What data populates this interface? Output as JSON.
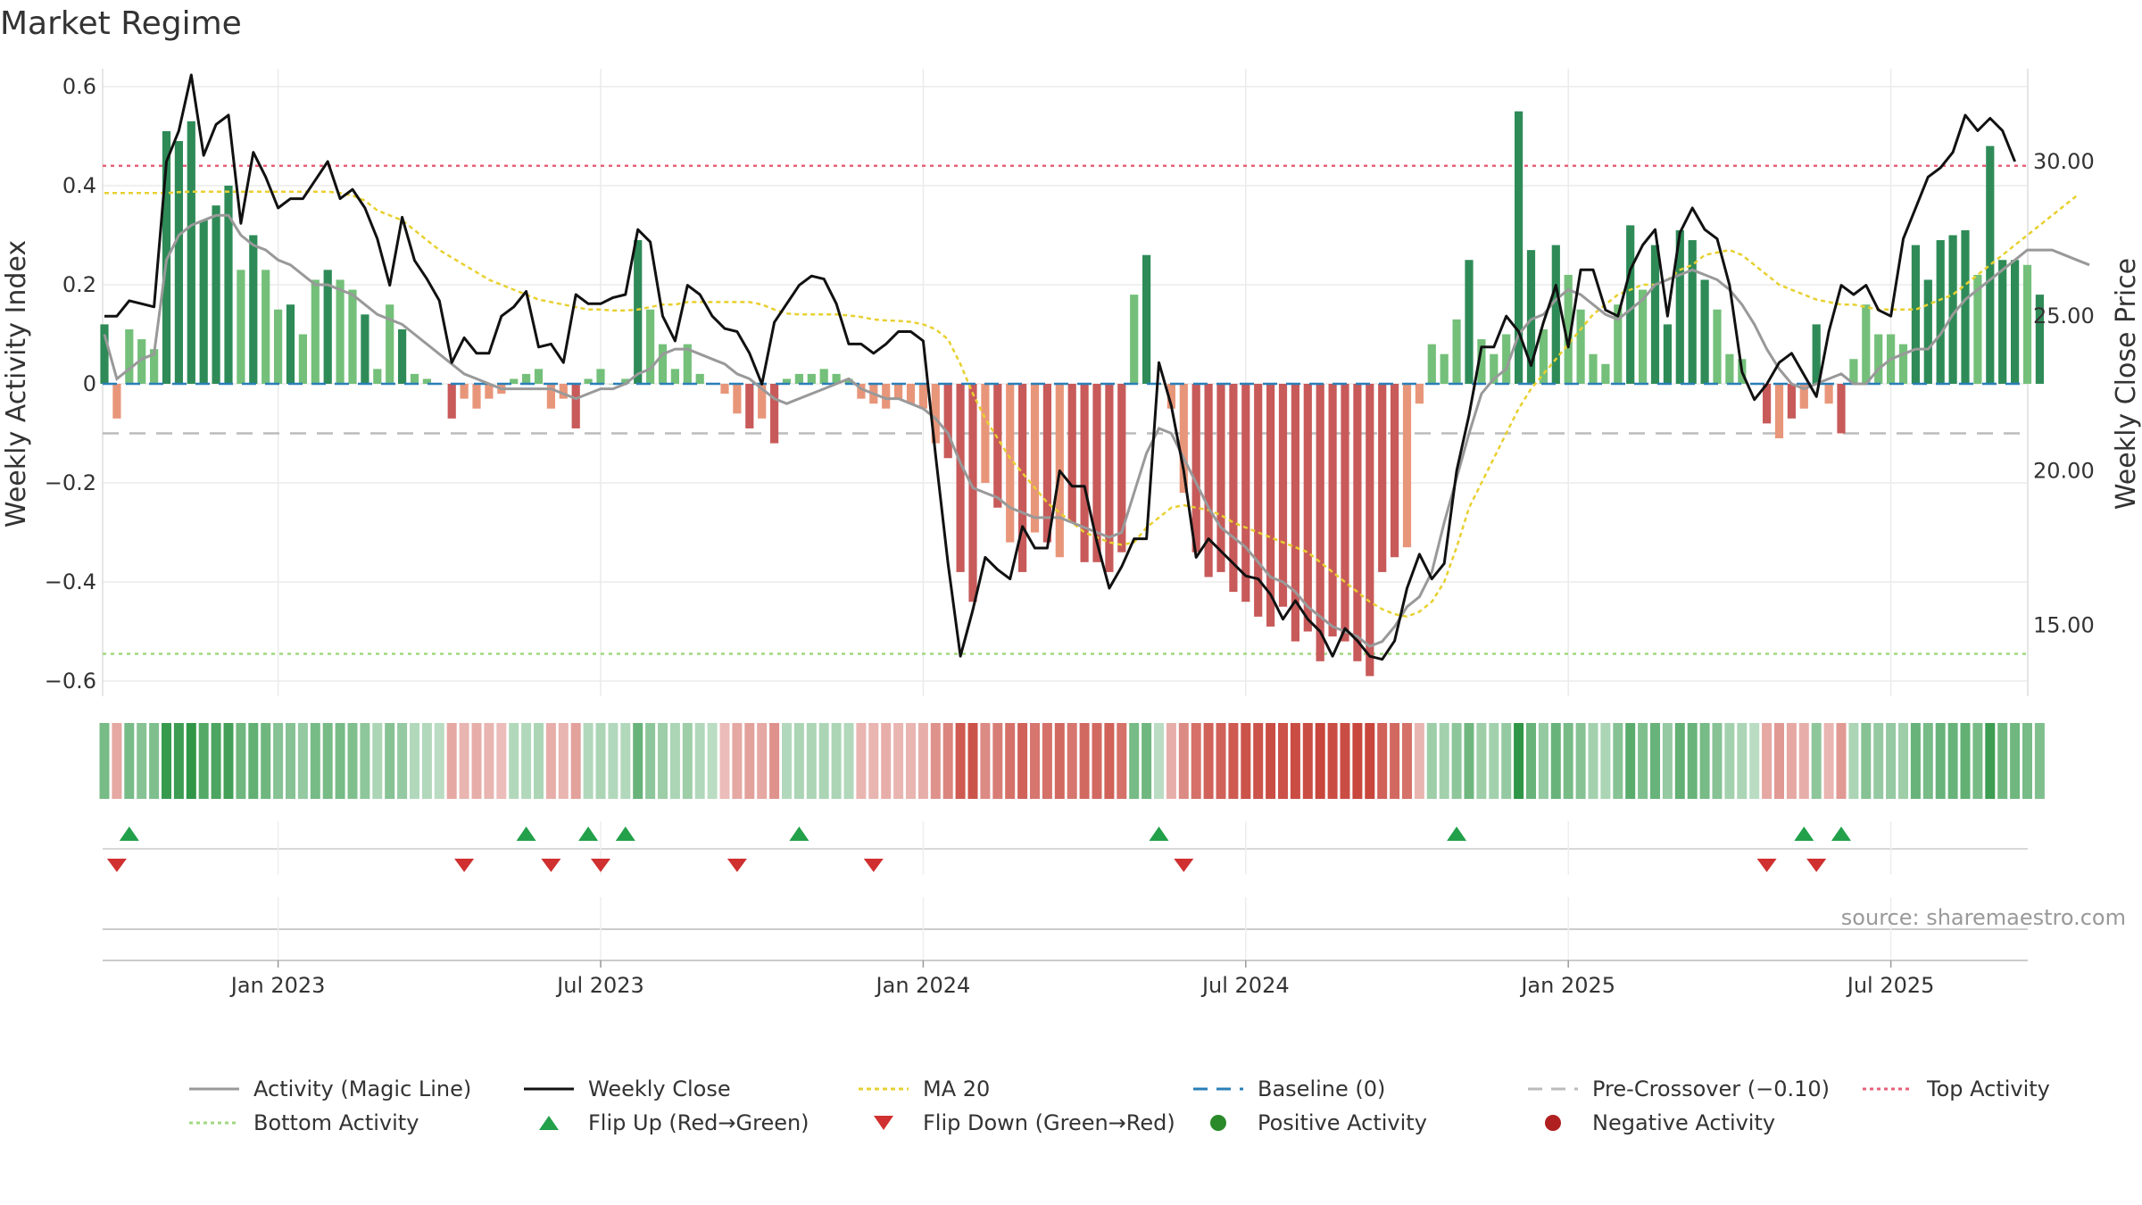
{
  "title": "Market Regime",
  "source": "source: sharemaestro.com",
  "colors": {
    "green_dark": "#2e8b57",
    "green_light": "#74c07a",
    "red_dark": "#c85a5a",
    "red_light": "#e8967a",
    "magic_line": "#999999",
    "close": "#111111",
    "ma20": "#e8d030",
    "baseline": "#2a7fb8",
    "pre": "#bbbbbb",
    "top": "#e8607a",
    "bottom": "#a0d880",
    "flip_up": "#22a04a",
    "flip_down": "#d03030"
  },
  "chart_data": {
    "type": "bar",
    "title": "Market Regime",
    "ylabel": "Weekly Activity Index",
    "y2label": "Weekly Close Price",
    "ylim": [
      -0.63,
      0.63
    ],
    "y2lim": [
      12.8,
      33.0
    ],
    "yticks": [
      "0.6",
      "0.4",
      "0.2",
      "0",
      "−0.2",
      "−0.4",
      "−0.6"
    ],
    "y2ticks": [
      "30.00",
      "25.00",
      "20.00",
      "15.00"
    ],
    "xticks": [
      "Jan 2023",
      "Jul 2023",
      "Jan 2024",
      "Jul 2024",
      "Jan 2025",
      "Jul 2025"
    ],
    "xtick_week_index": [
      14,
      40,
      66,
      92,
      118,
      144
    ],
    "reference_lines": {
      "baseline": 0,
      "pre_crossover": -0.1,
      "top_activity": 0.44,
      "bottom_activity": -0.545
    },
    "activity": [
      0.12,
      -0.07,
      0.11,
      0.09,
      0.07,
      0.51,
      0.49,
      0.53,
      0.33,
      0.36,
      0.4,
      0.23,
      0.3,
      0.23,
      0.15,
      0.16,
      0.1,
      0.21,
      0.23,
      0.21,
      0.19,
      0.14,
      0.03,
      0.16,
      0.11,
      0.02,
      0.01,
      0,
      -0.07,
      -0.03,
      -0.05,
      -0.03,
      -0.02,
      0.01,
      0.02,
      0.03,
      -0.05,
      -0.03,
      -0.09,
      0.01,
      0.03,
      0,
      0.01,
      0.29,
      0.15,
      0.08,
      0.03,
      0.08,
      0.02,
      0,
      -0.02,
      -0.06,
      -0.09,
      -0.07,
      -0.12,
      0.01,
      0.02,
      0.02,
      0.03,
      0.02,
      0.01,
      -0.03,
      -0.04,
      -0.05,
      -0.03,
      -0.04,
      -0.05,
      -0.12,
      -0.15,
      -0.38,
      -0.44,
      -0.2,
      -0.25,
      -0.32,
      -0.38,
      -0.3,
      -0.32,
      -0.35,
      -0.28,
      -0.36,
      -0.36,
      -0.38,
      -0.34,
      0.18,
      0.26,
      0,
      -0.05,
      -0.22,
      -0.34,
      -0.39,
      -0.38,
      -0.42,
      -0.44,
      -0.47,
      -0.49,
      -0.45,
      -0.52,
      -0.5,
      -0.56,
      -0.51,
      -0.52,
      -0.56,
      -0.59,
      -0.38,
      -0.35,
      -0.33,
      -0.04,
      0.08,
      0.06,
      0.13,
      0.25,
      0.09,
      0.06,
      0.1,
      0.55,
      0.27,
      0.11,
      0.28,
      0.22,
      0.15,
      0.06,
      0.04,
      0.16,
      0.32,
      0.19,
      0.28,
      0.12,
      0.31,
      0.29,
      0.21,
      0.15,
      0.06,
      0.05,
      0,
      -0.08,
      -0.11,
      -0.07,
      -0.05,
      0.12,
      -0.04,
      -0.1,
      0.05,
      0.16,
      0.1,
      0.1,
      0.08,
      0.28,
      0.21,
      0.29,
      0.3,
      0.31,
      0.22,
      0.48,
      0.25,
      0.25,
      0.24,
      0.18
    ],
    "close": [
      25.0,
      25.0,
      25.5,
      25.4,
      25.3,
      30.0,
      31.0,
      32.8,
      30.2,
      31.2,
      31.5,
      28.0,
      30.3,
      29.5,
      28.5,
      28.8,
      28.8,
      29.4,
      30.0,
      28.8,
      29.1,
      28.5,
      27.5,
      26.0,
      28.2,
      26.8,
      26.2,
      25.5,
      23.5,
      24.3,
      23.8,
      23.8,
      25.0,
      25.3,
      25.8,
      24.0,
      24.1,
      23.5,
      25.7,
      25.4,
      25.4,
      25.6,
      25.7,
      27.8,
      27.4,
      25.0,
      24.2,
      26.0,
      25.7,
      25.0,
      24.6,
      24.5,
      23.8,
      22.8,
      24.8,
      25.4,
      26.0,
      26.3,
      26.2,
      25.4,
      24.1,
      24.1,
      23.8,
      24.1,
      24.5,
      24.5,
      24.2,
      20.5,
      17.0,
      14.0,
      15.5,
      17.2,
      16.8,
      16.5,
      18.2,
      17.5,
      17.5,
      20.0,
      19.5,
      19.5,
      17.7,
      16.2,
      16.9,
      17.8,
      17.8,
      23.5,
      22.1,
      20.0,
      17.2,
      17.8,
      17.4,
      17.0,
      16.6,
      16.5,
      16.0,
      15.2,
      15.8,
      15.2,
      14.8,
      14.0,
      14.9,
      14.5,
      14.0,
      13.9,
      14.5,
      16.2,
      17.3,
      16.5,
      17.0,
      20.0,
      21.8,
      24.0,
      24.0,
      25.0,
      24.5,
      23.4,
      24.8,
      26.0,
      24.0,
      26.5,
      26.5,
      25.2,
      25.0,
      26.5,
      27.3,
      27.8,
      25.0,
      27.7,
      28.5,
      27.8,
      27.5,
      26.0,
      23.2,
      22.3,
      22.8,
      23.5,
      23.8,
      23.1,
      22.4,
      24.5,
      26.0,
      25.7,
      26.0,
      25.2,
      25.0,
      27.5,
      28.5,
      29.5,
      29.8,
      30.3,
      31.5,
      31.0,
      31.4,
      31.0,
      30.0
    ],
    "magic_line": [
      0.1,
      0.01,
      0.03,
      0.05,
      0.06,
      0.25,
      0.3,
      0.32,
      0.33,
      0.34,
      0.34,
      0.3,
      0.28,
      0.27,
      0.25,
      0.24,
      0.22,
      0.2,
      0.2,
      0.19,
      0.18,
      0.16,
      0.14,
      0.13,
      0.12,
      0.1,
      0.08,
      0.06,
      0.04,
      0.02,
      0.01,
      0,
      -0.01,
      -0.01,
      -0.01,
      -0.01,
      -0.01,
      -0.02,
      -0.03,
      -0.02,
      -0.01,
      -0.01,
      0,
      0.02,
      0.03,
      0.06,
      0.07,
      0.07,
      0.06,
      0.05,
      0.04,
      0.02,
      0.01,
      -0.01,
      -0.03,
      -0.04,
      -0.03,
      -0.02,
      -0.01,
      0,
      0.01,
      -0.01,
      -0.02,
      -0.03,
      -0.03,
      -0.04,
      -0.05,
      -0.07,
      -0.1,
      -0.16,
      -0.21,
      -0.22,
      -0.23,
      -0.25,
      -0.26,
      -0.27,
      -0.27,
      -0.27,
      -0.28,
      -0.29,
      -0.3,
      -0.31,
      -0.3,
      -0.22,
      -0.14,
      -0.09,
      -0.1,
      -0.15,
      -0.2,
      -0.25,
      -0.29,
      -0.31,
      -0.33,
      -0.36,
      -0.39,
      -0.4,
      -0.42,
      -0.45,
      -0.47,
      -0.49,
      -0.5,
      -0.51,
      -0.53,
      -0.52,
      -0.49,
      -0.45,
      -0.43,
      -0.38,
      -0.28,
      -0.19,
      -0.1,
      -0.02,
      0.01,
      0.03,
      0.1,
      0.13,
      0.14,
      0.17,
      0.19,
      0.18,
      0.16,
      0.14,
      0.13,
      0.15,
      0.17,
      0.2,
      0.21,
      0.22,
      0.23,
      0.22,
      0.21,
      0.19,
      0.16,
      0.12,
      0.07,
      0.03,
      0,
      -0.01,
      0,
      0.01,
      0.02,
      0,
      0,
      0.03,
      0.05,
      0.06,
      0.07,
      0.07,
      0.1,
      0.14,
      0.17,
      0.19,
      0.21,
      0.23,
      0.25,
      0.27,
      0.27,
      0.27,
      0.26,
      0.25,
      0.24
    ],
    "ma20": [
      0.385,
      0.385,
      0.385,
      0.385,
      0.385,
      0.385,
      0.387,
      0.388,
      0.388,
      0.388,
      0.388,
      0.388,
      0.388,
      0.388,
      0.388,
      0.388,
      0.388,
      0.388,
      0.388,
      0.385,
      0.38,
      0.37,
      0.35,
      0.34,
      0.33,
      0.31,
      0.29,
      0.27,
      0.255,
      0.24,
      0.225,
      0.21,
      0.2,
      0.19,
      0.18,
      0.17,
      0.165,
      0.16,
      0.155,
      0.15,
      0.15,
      0.148,
      0.148,
      0.15,
      0.155,
      0.16,
      0.16,
      0.165,
      0.165,
      0.165,
      0.165,
      0.165,
      0.165,
      0.16,
      0.15,
      0.142,
      0.14,
      0.14,
      0.14,
      0.14,
      0.138,
      0.135,
      0.13,
      0.128,
      0.127,
      0.125,
      0.12,
      0.11,
      0.09,
      0.04,
      -0.02,
      -0.07,
      -0.11,
      -0.15,
      -0.18,
      -0.21,
      -0.24,
      -0.26,
      -0.28,
      -0.3,
      -0.31,
      -0.32,
      -0.325,
      -0.32,
      -0.29,
      -0.27,
      -0.25,
      -0.245,
      -0.25,
      -0.255,
      -0.265,
      -0.28,
      -0.29,
      -0.3,
      -0.31,
      -0.32,
      -0.33,
      -0.34,
      -0.36,
      -0.38,
      -0.4,
      -0.42,
      -0.44,
      -0.455,
      -0.465,
      -0.47,
      -0.46,
      -0.44,
      -0.4,
      -0.33,
      -0.25,
      -0.2,
      -0.15,
      -0.1,
      -0.05,
      -0.01,
      0.02,
      0.05,
      0.08,
      0.11,
      0.14,
      0.16,
      0.18,
      0.19,
      0.2,
      0.2,
      0.21,
      0.23,
      0.24,
      0.26,
      0.265,
      0.27,
      0.26,
      0.24,
      0.22,
      0.2,
      0.19,
      0.18,
      0.17,
      0.165,
      0.16,
      0.16,
      0.155,
      0.15,
      0.15,
      0.15,
      0.15,
      0.16,
      0.17,
      0.18,
      0.2,
      0.22,
      0.24,
      0.26,
      0.28,
      0.3,
      0.32,
      0.34,
      0.36,
      0.38
    ],
    "regime_strength": [
      0.5,
      0.3,
      0.5,
      0.4,
      0.45,
      0.95,
      0.9,
      1.0,
      0.75,
      0.8,
      0.85,
      0.55,
      0.65,
      0.55,
      0.4,
      0.4,
      0.3,
      0.5,
      0.5,
      0.5,
      0.45,
      0.35,
      0.15,
      0.4,
      0.3,
      0.1,
      0.1,
      0.05,
      0.3,
      0.2,
      0.25,
      0.2,
      0.15,
      0.1,
      0.1,
      0.15,
      0.25,
      0.2,
      0.35,
      0.1,
      0.15,
      0.1,
      0.1,
      0.6,
      0.35,
      0.25,
      0.15,
      0.25,
      0.1,
      0.05,
      0.15,
      0.3,
      0.35,
      0.3,
      0.45,
      0.1,
      0.15,
      0.15,
      0.15,
      0.15,
      0.1,
      0.2,
      0.2,
      0.25,
      0.2,
      0.2,
      0.25,
      0.45,
      0.55,
      0.85,
      0.9,
      0.5,
      0.6,
      0.7,
      0.8,
      0.65,
      0.7,
      0.75,
      0.65,
      0.75,
      0.75,
      0.8,
      0.7,
      0.5,
      0.55,
      0.05,
      0.25,
      0.5,
      0.7,
      0.8,
      0.8,
      0.85,
      0.9,
      0.9,
      0.95,
      0.9,
      0.95,
      0.95,
      1.0,
      0.95,
      0.95,
      1.0,
      1.0,
      0.8,
      0.75,
      0.7,
      0.2,
      0.25,
      0.2,
      0.35,
      0.55,
      0.25,
      0.2,
      0.3,
      1.0,
      0.6,
      0.3,
      0.6,
      0.5,
      0.4,
      0.2,
      0.15,
      0.4,
      0.7,
      0.45,
      0.6,
      0.3,
      0.65,
      0.6,
      0.5,
      0.4,
      0.2,
      0.15,
      0.05,
      0.3,
      0.4,
      0.3,
      0.25,
      0.35,
      0.2,
      0.4,
      0.15,
      0.4,
      0.3,
      0.3,
      0.25,
      0.6,
      0.5,
      0.6,
      0.6,
      0.65,
      0.5,
      0.9,
      0.55,
      0.55,
      0.5,
      0.45
    ],
    "flip_up_weeks": [
      2,
      34,
      39,
      42,
      56,
      85,
      109,
      137,
      140
    ],
    "flip_down_weeks": [
      1,
      29,
      36,
      40,
      51,
      62,
      87,
      134,
      138
    ]
  },
  "legend": {
    "magic_line": "Activity (Magic Line)",
    "close": "Weekly Close",
    "ma20": "MA 20",
    "baseline": "Baseline (0)",
    "pre": "Pre-Crossover (−0.10)",
    "top": "Top Activity",
    "bottom": "Bottom Activity",
    "flip_up": "Flip Up (Red→Green)",
    "flip_down": "Flip Down (Green→Red)",
    "positive": "Positive Activity",
    "negative": "Negative Activity"
  }
}
